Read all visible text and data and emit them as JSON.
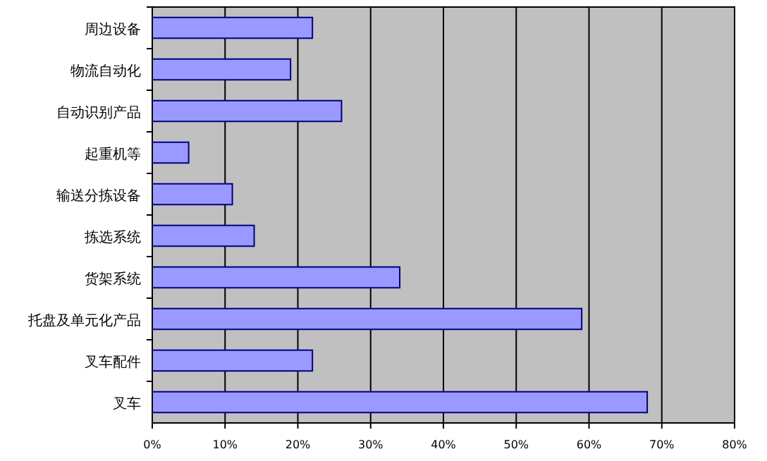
{
  "chart_data": {
    "type": "bar",
    "orientation": "horizontal",
    "categories": [
      "周边设备",
      "物流自动化",
      "自动识别产品",
      "起重机等",
      "输送分拣设备",
      "拣选系统",
      "货架系统",
      "托盘及单元化产品",
      "叉车配件",
      "叉车"
    ],
    "values": [
      22,
      19,
      26,
      5,
      11,
      14,
      34,
      59,
      22,
      68
    ],
    "color": "#9999ff",
    "xlim": [
      0,
      80
    ],
    "xticks": [
      {
        "value": 0,
        "label": "0%"
      },
      {
        "value": 10,
        "label": "10%"
      },
      {
        "value": 20,
        "label": "20%"
      },
      {
        "value": 30,
        "label": "30%"
      },
      {
        "value": 40,
        "label": "40%"
      },
      {
        "value": 50,
        "label": "50%"
      },
      {
        "value": 60,
        "label": "60%"
      },
      {
        "value": 70,
        "label": "70%"
      },
      {
        "value": 80,
        "label": "80%"
      }
    ],
    "grid": "x"
  }
}
